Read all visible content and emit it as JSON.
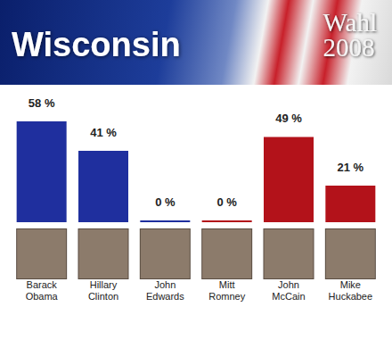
{
  "chart_data": {
    "type": "bar",
    "title": "Wisconsin",
    "subtitle": "Wahl 2008",
    "categories": [
      "Barack Obama",
      "Hillary Clinton",
      "John Edwards",
      "Mitt Romney",
      "John McCain",
      "Mike Huckabee"
    ],
    "values": [
      58,
      41,
      0,
      0,
      49,
      21
    ],
    "value_labels": [
      "58 %",
      "41 %",
      "0 %",
      "0 %",
      "49 %",
      "21 %"
    ],
    "colors": [
      "#1f2f9e",
      "#1f2f9e",
      "#1f2f9e",
      "#b3121a",
      "#b3121a",
      "#b3121a"
    ],
    "ylim": [
      0,
      60
    ],
    "data_labels": true,
    "tick_labels": "x",
    "grid": false
  }
}
